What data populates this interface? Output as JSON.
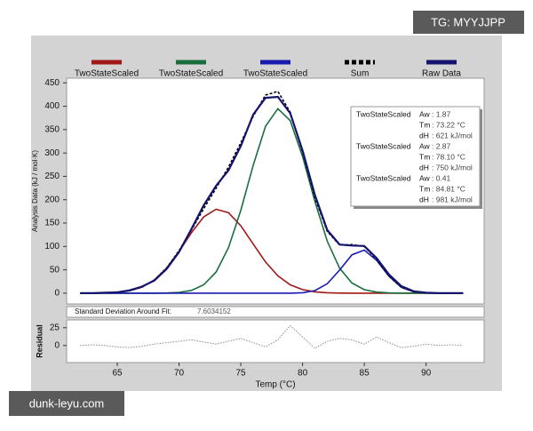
{
  "chart_data": [
    {
      "type": "line",
      "ylabel": "Analysis Data (kJ / mol·K)",
      "x": [
        62,
        63,
        64,
        65,
        66,
        67,
        68,
        69,
        70,
        71,
        72,
        73,
        74,
        75,
        76,
        77,
        78,
        79,
        80,
        81,
        82,
        83,
        84,
        85,
        86,
        87,
        88,
        89,
        90,
        91,
        92,
        93
      ],
      "series": [
        {
          "name": "TwoStateScaled",
          "color": "#a01818",
          "dashed": false,
          "values": [
            0,
            0.1,
            0.5,
            1.8,
            5.2,
            12.9,
            28.1,
            53.6,
            89.2,
            129.1,
            163.1,
            179.5,
            172.3,
            144.2,
            105.1,
            66.8,
            37.1,
            17.9,
            7.6,
            2.8,
            0.9,
            0.2,
            0,
            0,
            0,
            0,
            0,
            0,
            0,
            0,
            0,
            0
          ]
        },
        {
          "name": "TwoStateScaled",
          "color": "#1a6e3c",
          "dashed": false,
          "values": [
            0,
            0,
            0,
            0,
            0,
            0,
            0.1,
            0.4,
            1.7,
            5.9,
            17.8,
            45.2,
            97.3,
            177.4,
            273.5,
            357.1,
            394.7,
            369.2,
            292.4,
            196.0,
            111.2,
            53.4,
            21.7,
            7.5,
            2.2,
            0.5,
            0,
            0,
            0,
            0,
            0,
            0
          ]
        },
        {
          "name": "TwoStateScaled",
          "color": "#1a1ab0",
          "dashed": false,
          "values": [
            0,
            0,
            0,
            0,
            0,
            0,
            0,
            0,
            0,
            0,
            0,
            0,
            0,
            0,
            0,
            0,
            0,
            0.1,
            1.0,
            5.5,
            20.1,
            49.4,
            82.1,
            92.3,
            70.2,
            36.2,
            12.6,
            3.0,
            0.5,
            0,
            0,
            0
          ]
        },
        {
          "name": "Sum",
          "color": "#000000",
          "dashed": true,
          "values": [
            0,
            0.1,
            0.5,
            1.8,
            5.2,
            12.9,
            28.2,
            54.0,
            90.9,
            135.0,
            180.9,
            224.7,
            269.6,
            321.6,
            378.6,
            423.9,
            431.8,
            387.2,
            301.0,
            204.3,
            132.2,
            103.0,
            103.8,
            99.8,
            72.4,
            36.7,
            12.6,
            3.0,
            0.5,
            0,
            0,
            0
          ]
        },
        {
          "name": "Raw Data",
          "color": "#14146e",
          "dashed": false,
          "values": [
            0,
            0,
            1,
            2,
            6,
            14,
            27,
            52,
            88,
            137,
            188,
            230,
            263,
            315,
            382,
            418,
            420,
            385,
            305,
            210,
            135,
            104,
            102,
            101,
            75,
            40,
            15,
            4,
            1,
            0,
            0,
            0
          ]
        }
      ],
      "xlim": [
        60.9,
        94.7
      ],
      "ylim": [
        -23,
        460
      ],
      "yticks": [
        0,
        50,
        100,
        150,
        200,
        250,
        300,
        350,
        400,
        450
      ]
    },
    {
      "type": "line",
      "xlabel": "Temp (°C)",
      "ylabel": "Residual",
      "x": [
        62,
        63,
        64,
        65,
        66,
        67,
        68,
        69,
        70,
        71,
        72,
        73,
        74,
        75,
        76,
        77,
        78,
        79,
        80,
        81,
        82,
        83,
        84,
        85,
        86,
        87,
        88,
        89,
        90,
        91,
        92,
        93
      ],
      "series": [
        {
          "color": "#8a8a8a",
          "dashed": true,
          "values": [
            0,
            1,
            0,
            -2,
            -3,
            -1,
            2,
            4,
            6,
            8,
            5,
            2,
            6,
            10,
            4,
            -2,
            8,
            28,
            12,
            -4,
            6,
            10,
            8,
            2,
            12,
            4,
            -3,
            -1,
            2,
            0,
            1,
            0
          ]
        }
      ],
      "xlim": [
        60.9,
        94.7
      ],
      "ylim": [
        -24,
        36
      ],
      "xticks": [
        65,
        70,
        75,
        80,
        85,
        90
      ],
      "yticks": [
        0,
        25
      ]
    }
  ],
  "fit": {
    "label": "Standard Deviation Around Fit:",
    "value": "7.6034152"
  },
  "components": [
    {
      "name": "TwoStateScaled",
      "rows": [
        [
          "Aw",
          ": 1.87"
        ],
        [
          "Tm",
          ": 73.22 °C"
        ],
        [
          "dH",
          ": 621 kJ/mol"
        ]
      ]
    },
    {
      "name": "TwoStateScaled",
      "rows": [
        [
          "Aw",
          ": 2.87"
        ],
        [
          "Tm",
          ": 78.10 °C"
        ],
        [
          "dH",
          ": 750 kJ/mol"
        ]
      ]
    },
    {
      "name": "TwoStateScaled",
      "rows": [
        [
          "Aw",
          ": 0.41"
        ],
        [
          "Tm",
          ": 84.81 °C"
        ],
        [
          "dH",
          ": 981 kJ/mol"
        ]
      ]
    }
  ],
  "watermarks": {
    "top": "TG: MYYJJPP",
    "bottom": "dunk-leyu.com"
  }
}
